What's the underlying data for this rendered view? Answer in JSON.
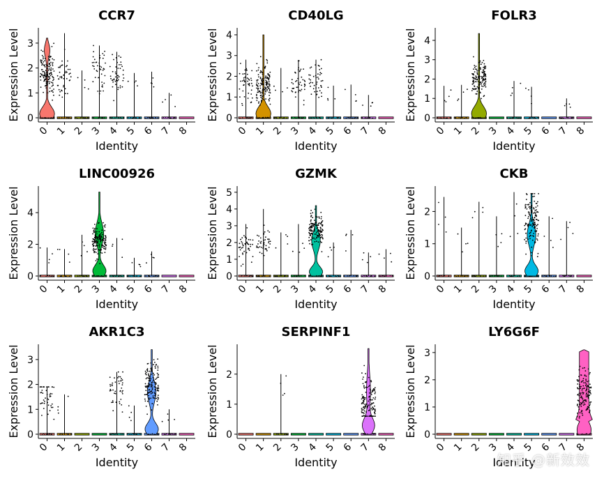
{
  "chart_data": {
    "type": "violin",
    "xlabel": "Identity",
    "ylabel": "Expression Level",
    "clusters": [
      "0",
      "1",
      "2",
      "3",
      "4",
      "5",
      "6",
      "7",
      "8"
    ],
    "cluster_colors": [
      "#F8766D",
      "#D39200",
      "#93AA00",
      "#00BA38",
      "#00C19F",
      "#00B9E3",
      "#619CFF",
      "#DB72FB",
      "#FF61C3"
    ],
    "panels": [
      {
        "gene": "CCR7",
        "ylim": [
          0,
          3.5
        ],
        "yticks": [
          0,
          1,
          2,
          3
        ],
        "max_values": [
          3.2,
          3.4,
          1.9,
          2.9,
          2.65,
          1.8,
          1.85,
          1.0,
          0.0
        ],
        "dense_center": [
          1.8,
          1.6,
          0,
          2.0,
          1.6,
          0,
          0,
          0,
          0
        ],
        "violin_cluster": "0",
        "violin_shape": "low-bulge-high-tail"
      },
      {
        "gene": "CD40LG",
        "ylim": [
          0,
          4.2
        ],
        "yticks": [
          0,
          1,
          2,
          3,
          4
        ],
        "max_values": [
          2.8,
          4.0,
          2.4,
          2.75,
          2.8,
          1.55,
          1.6,
          1.1,
          0.0
        ],
        "dense_center": [
          1.7,
          1.6,
          0,
          1.7,
          1.8,
          0,
          0,
          0,
          0
        ],
        "violin_cluster": "1",
        "violin_shape": "low-bulge"
      },
      {
        "gene": "FOLR3",
        "ylim": [
          0,
          4.5
        ],
        "yticks": [
          0,
          1,
          2,
          3,
          4
        ],
        "max_values": [
          1.65,
          1.7,
          4.35,
          0.0,
          1.9,
          1.6,
          0.0,
          1.0,
          0.0
        ],
        "dense_center": [
          0,
          0,
          2.0,
          0,
          0,
          0,
          0,
          0,
          0
        ],
        "violin_cluster": "2",
        "violin_shape": "low-bulge"
      },
      {
        "gene": "LINC00926",
        "ylim": [
          0,
          5.5
        ],
        "yticks": [
          0,
          2,
          4
        ],
        "max_values": [
          1.8,
          1.7,
          2.6,
          5.3,
          2.4,
          1.15,
          1.55,
          0.0,
          0.0
        ],
        "dense_center": [
          0,
          0,
          0,
          2.3,
          0,
          0,
          0,
          0,
          0
        ],
        "violin_cluster": "3",
        "violin_shape": "two-bulge"
      },
      {
        "gene": "GZMK",
        "ylim": [
          0,
          5.2
        ],
        "yticks": [
          0,
          1,
          2,
          3,
          4,
          5
        ],
        "max_values": [
          3.1,
          4.0,
          2.6,
          3.1,
          4.2,
          2.0,
          2.75,
          1.4,
          1.6
        ],
        "dense_center": [
          1.8,
          2.0,
          0,
          0,
          2.8,
          0,
          0,
          0,
          0
        ],
        "violin_cluster": "4",
        "violin_shape": "two-bulge"
      },
      {
        "gene": "CKB",
        "ylim": [
          0,
          2.7
        ],
        "yticks": [
          0,
          1,
          2
        ],
        "max_values": [
          2.45,
          1.5,
          2.3,
          1.85,
          2.6,
          2.55,
          1.85,
          1.7,
          0.0
        ],
        "dense_center": [
          0,
          0,
          0,
          0,
          0,
          1.7,
          0,
          0,
          0
        ],
        "violin_cluster": "5",
        "violin_shape": "two-bulge"
      },
      {
        "gene": "AKR1C3",
        "ylim": [
          0,
          3.5
        ],
        "yticks": [
          0,
          1,
          2,
          3
        ],
        "max_values": [
          1.9,
          1.6,
          0.0,
          0.0,
          2.5,
          1.15,
          3.4,
          1.0,
          0.0
        ],
        "dense_center": [
          1.5,
          0,
          0,
          0,
          1.9,
          0,
          2.0,
          0,
          0
        ],
        "violin_cluster": "6",
        "violin_shape": "two-bulge"
      },
      {
        "gene": "SERPINF1",
        "ylim": [
          0,
          2.9
        ],
        "yticks": [
          0,
          1,
          2
        ],
        "max_values": [
          0.0,
          0.0,
          2.0,
          0.0,
          0.0,
          0.0,
          0.0,
          2.85,
          0.0
        ],
        "dense_center": [
          0,
          0,
          0,
          0,
          0,
          0,
          0,
          1.0,
          0
        ],
        "violin_cluster": "7",
        "violin_shape": "top-heavy"
      },
      {
        "gene": "LY6G6F",
        "ylim": [
          0,
          3.2
        ],
        "yticks": [
          0,
          1,
          2,
          3
        ],
        "max_values": [
          0.0,
          0.0,
          0.0,
          0.0,
          0.0,
          0.0,
          0.0,
          0.0,
          3.1
        ],
        "dense_center": [
          0,
          0,
          0,
          0,
          0,
          0,
          0,
          0,
          1.5
        ],
        "violin_cluster": "8",
        "violin_shape": "flat-top"
      }
    ]
  },
  "watermark": "知乎 @新效效"
}
